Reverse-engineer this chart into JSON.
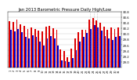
{
  "title": "Jan 2013 Barometric Pressure Daily High/Low",
  "ylim": [
    28.8,
    30.8
  ],
  "yticks": [
    29.0,
    29.2,
    29.4,
    29.6,
    29.8,
    30.0,
    30.2,
    30.4,
    30.6,
    30.8
  ],
  "ytick_labels": [
    "29.0",
    "29.2",
    "29.4",
    "29.6",
    "29.8",
    "30.0",
    "30.2",
    "30.4",
    "30.6",
    "30.8"
  ],
  "bar_width": 0.4,
  "days": [
    "1",
    "2",
    "3",
    "4",
    "5",
    "6",
    "7",
    "8",
    "9",
    "10",
    "11",
    "12",
    "13",
    "14",
    "15",
    "16",
    "17",
    "18",
    "19",
    "20",
    "21",
    "22",
    "23",
    "24",
    "25",
    "26",
    "27",
    "28",
    "29",
    "30",
    "31"
  ],
  "highs": [
    30.45,
    30.42,
    30.52,
    30.35,
    30.28,
    30.18,
    30.22,
    30.18,
    30.1,
    30.08,
    30.25,
    30.28,
    30.2,
    30.15,
    29.45,
    29.38,
    29.15,
    29.48,
    29.82,
    30.05,
    30.15,
    30.15,
    30.52,
    30.55,
    30.48,
    30.38,
    30.25,
    30.15,
    30.22,
    30.18,
    30.22
  ],
  "lows": [
    30.15,
    30.08,
    30.18,
    30.05,
    29.88,
    29.82,
    29.95,
    29.88,
    29.72,
    29.58,
    29.82,
    29.92,
    29.82,
    29.58,
    29.05,
    29.02,
    28.98,
    29.12,
    29.42,
    29.72,
    29.88,
    30.02,
    30.18,
    30.32,
    30.22,
    30.12,
    29.92,
    29.82,
    29.78,
    29.88,
    29.92
  ],
  "high_color": "#dd0000",
  "low_color": "#0000cc",
  "bg_color": "#ffffff",
  "grid_color": "#aaaaaa",
  "dotted_lines": [
    22,
    23,
    24
  ],
  "title_fontsize": 3.8,
  "tick_fontsize": 2.5,
  "ytick_fontsize": 2.8
}
